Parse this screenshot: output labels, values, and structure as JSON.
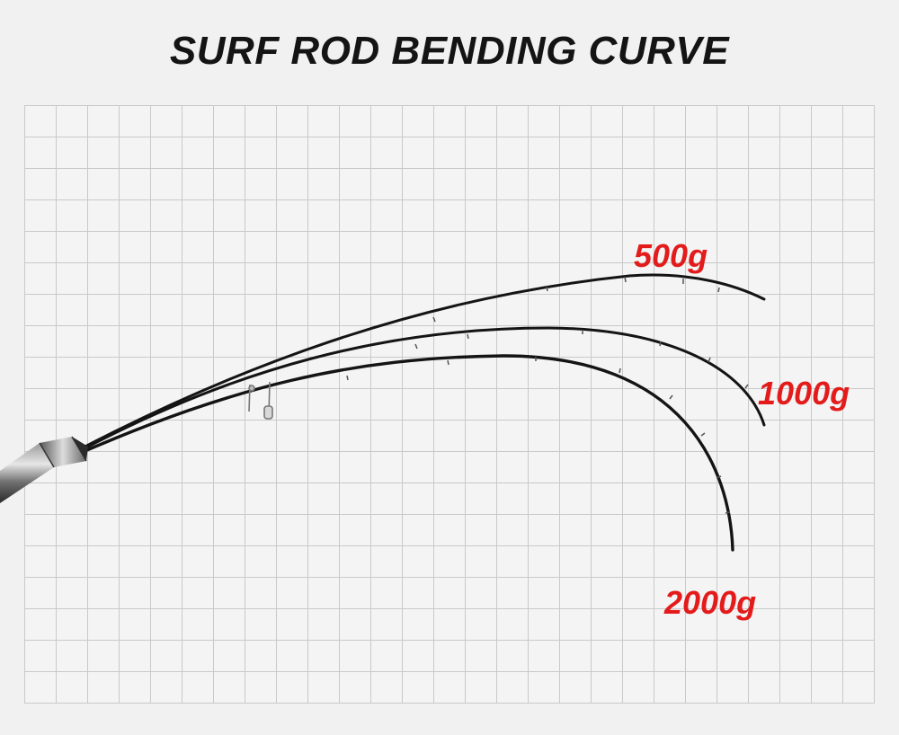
{
  "title": "SURF ROD BENDING CURVE",
  "curves": [
    {
      "load_label": "500g"
    },
    {
      "load_label": "1000g"
    },
    {
      "load_label": "2000g"
    }
  ],
  "colors": {
    "label": "#e31b1b",
    "rod": "#141414",
    "grid_line": "#c9c9c9",
    "background": "#f1f1f1"
  }
}
